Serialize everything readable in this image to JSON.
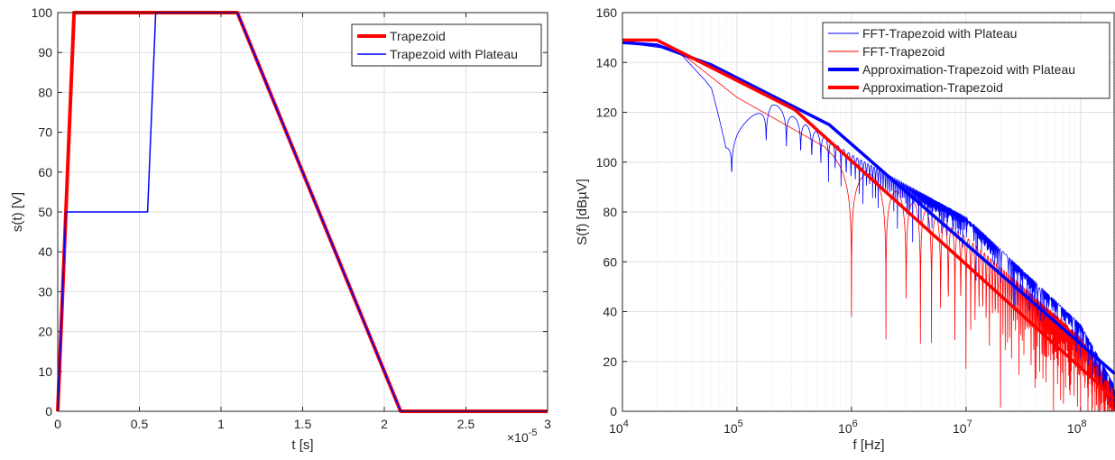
{
  "chart_data": [
    {
      "type": "line",
      "xlabel": "t [s]",
      "ylabel": "s(t) [V]",
      "x_exponent_label": "×10",
      "x_exponent_power": "-5",
      "xlim": [
        0,
        3
      ],
      "ylim": [
        0,
        100
      ],
      "xticks": [
        0,
        0.5,
        1,
        1.5,
        2,
        2.5,
        3
      ],
      "xtick_labels": [
        "0",
        "0.5",
        "1",
        "1.5",
        "2",
        "2.5",
        "3"
      ],
      "yticks": [
        0,
        10,
        20,
        30,
        40,
        50,
        60,
        70,
        80,
        90,
        100
      ],
      "ytick_labels": [
        "0",
        "10",
        "20",
        "30",
        "40",
        "50",
        "60",
        "70",
        "80",
        "90",
        "100"
      ],
      "grid": true,
      "legend_position": "top-right",
      "series": [
        {
          "name": "Trapezoid",
          "color": "#ff0000",
          "x": [
            0,
            0.1,
            1.1,
            2.1,
            3.0
          ],
          "y": [
            0,
            100,
            100,
            0,
            0
          ]
        },
        {
          "name": "Trapezoid with Plateau",
          "color": "#0000ff",
          "x": [
            0,
            0.05,
            0.55,
            0.6,
            1.1,
            2.1,
            3.0
          ],
          "y": [
            0,
            50,
            50,
            100,
            100,
            0,
            0
          ]
        }
      ]
    },
    {
      "type": "line",
      "xlabel": "f [Hz]",
      "ylabel": "S(f) [dBµV]",
      "xscale": "log",
      "xlim": [
        10000,
        200000000
      ],
      "ylim": [
        0,
        160
      ],
      "xticks": [
        10000,
        100000,
        1000000,
        10000000,
        100000000
      ],
      "xtick_base": "10",
      "xtick_powers": [
        "4",
        "5",
        "6",
        "7",
        "8"
      ],
      "yticks": [
        0,
        20,
        40,
        60,
        80,
        100,
        120,
        140,
        160
      ],
      "ytick_labels": [
        "0",
        "20",
        "40",
        "60",
        "80",
        "100",
        "120",
        "140",
        "160"
      ],
      "grid": true,
      "minor_grid": true,
      "legend_position": "top-right",
      "series": [
        {
          "name": "FFT-Trapezoid with Plateau",
          "color": "#0000ff",
          "style": "thin",
          "notes_x": [
            10000,
            30000,
            60000,
            80000,
            100000,
            200000,
            1000000,
            10000000,
            100000000,
            200000000
          ],
          "envelope_y": [
            148,
            145,
            130,
            109,
            114,
            124,
            103,
            78,
            35,
            10
          ]
        },
        {
          "name": "FFT-Trapezoid",
          "color": "#ff0000",
          "style": "thin",
          "notes_x": [
            10000,
            30000,
            100000,
            1000000,
            10000000,
            100000000,
            200000000
          ],
          "envelope_y": [
            149,
            145,
            126,
            100,
            70,
            30,
            8
          ]
        },
        {
          "name": "Approximation-Trapezoid with Plateau",
          "color": "#0000ff",
          "style": "thick",
          "x": [
            10000,
            20000,
            60000,
            640000,
            200000000
          ],
          "y": [
            148,
            147,
            139,
            115,
            15
          ]
        },
        {
          "name": "Approximation-Trapezoid",
          "color": "#ff0000",
          "style": "thick",
          "x": [
            10000,
            20000,
            320000,
            200000000
          ],
          "y": [
            149,
            149,
            121,
            5
          ]
        }
      ]
    }
  ]
}
